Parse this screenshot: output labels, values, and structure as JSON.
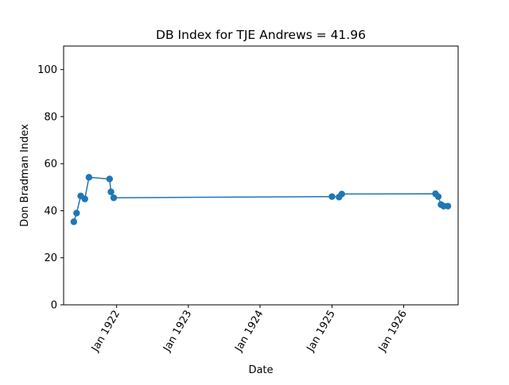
{
  "chart_data": {
    "type": "line",
    "title": "DB Index for TJE Andrews = 41.96",
    "xlabel": "Date",
    "ylabel": "Don Bradman Index",
    "ylim": [
      0,
      110
    ],
    "xlim": [
      "1921-04-06",
      "1926-10-05"
    ],
    "y_ticks": [
      0,
      20,
      40,
      60,
      80,
      100
    ],
    "x_ticks": [
      {
        "date": "1922-01-01",
        "label": "Jan 1922"
      },
      {
        "date": "1923-01-01",
        "label": "Jan 1923"
      },
      {
        "date": "1924-01-01",
        "label": "Jan 1924"
      },
      {
        "date": "1925-01-01",
        "label": "Jan 1925"
      },
      {
        "date": "1926-01-01",
        "label": "Jan 1926"
      }
    ],
    "grid": false,
    "legend": "none",
    "colors": {
      "series": "#1f77b4"
    },
    "series": [
      {
        "points": [
          {
            "x": "1921-05-28",
            "y": 35.3
          },
          {
            "x": "1921-06-11",
            "y": 39.0
          },
          {
            "x": "1921-07-02",
            "y": 46.3
          },
          {
            "x": "1921-07-23",
            "y": 45.0
          },
          {
            "x": "1921-08-13",
            "y": 54.2
          },
          {
            "x": "1921-11-26",
            "y": 53.5
          },
          {
            "x": "1921-12-03",
            "y": 48.0
          },
          {
            "x": "1921-12-17",
            "y": 45.5
          },
          {
            "x": "1925-01-01",
            "y": 46.0
          },
          {
            "x": "1925-02-06",
            "y": 45.8
          },
          {
            "x": "1925-02-20",
            "y": 47.1
          },
          {
            "x": "1926-06-12",
            "y": 47.2
          },
          {
            "x": "1926-06-26",
            "y": 46.0
          },
          {
            "x": "1926-07-10",
            "y": 42.6
          },
          {
            "x": "1926-07-24",
            "y": 41.96
          },
          {
            "x": "1926-08-14",
            "y": 41.96
          }
        ]
      }
    ]
  }
}
